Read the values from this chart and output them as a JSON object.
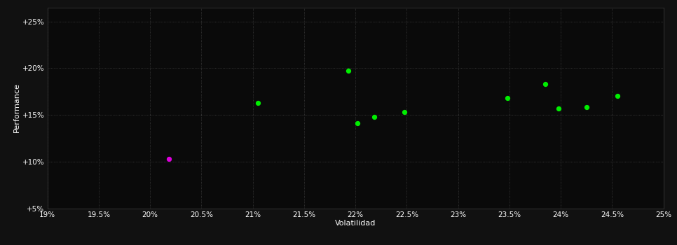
{
  "xlabel": "Volatilidad",
  "ylabel": "Performance",
  "background_color": "#111111",
  "plot_bg_color": "#0a0a0a",
  "grid_color": "#404040",
  "text_color": "#ffffff",
  "xlim": [
    0.19,
    0.25
  ],
  "ylim": [
    0.05,
    0.265
  ],
  "xticks": [
    0.19,
    0.195,
    0.2,
    0.205,
    0.21,
    0.215,
    0.22,
    0.225,
    0.23,
    0.235,
    0.24,
    0.245,
    0.25
  ],
  "yticks": [
    0.05,
    0.1,
    0.15,
    0.2,
    0.25
  ],
  "ytick_labels": [
    "+5%",
    "+10%",
    "+15%",
    "+20%",
    "+25%"
  ],
  "xtick_labels": [
    "19%",
    "19.5%",
    "20%",
    "20.5%",
    "21%",
    "21.5%",
    "22%",
    "22.5%",
    "23%",
    "23.5%",
    "24%",
    "24.5%",
    "25%"
  ],
  "green_points": [
    [
      0.2105,
      0.163
    ],
    [
      0.2193,
      0.197
    ],
    [
      0.2202,
      0.141
    ],
    [
      0.2218,
      0.148
    ],
    [
      0.2248,
      0.153
    ],
    [
      0.2348,
      0.168
    ],
    [
      0.2385,
      0.183
    ],
    [
      0.2398,
      0.157
    ],
    [
      0.2425,
      0.158
    ],
    [
      0.2455,
      0.17
    ]
  ],
  "magenta_points": [
    [
      0.2018,
      0.103
    ]
  ],
  "green_color": "#00ee00",
  "magenta_color": "#dd00dd",
  "marker_size": 18
}
